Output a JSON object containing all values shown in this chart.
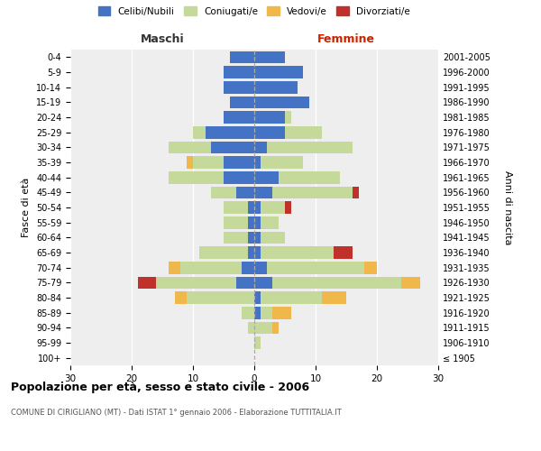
{
  "age_groups": [
    "100+",
    "95-99",
    "90-94",
    "85-89",
    "80-84",
    "75-79",
    "70-74",
    "65-69",
    "60-64",
    "55-59",
    "50-54",
    "45-49",
    "40-44",
    "35-39",
    "30-34",
    "25-29",
    "20-24",
    "15-19",
    "10-14",
    "5-9",
    "0-4"
  ],
  "birth_years": [
    "≤ 1905",
    "1906-1910",
    "1911-1915",
    "1916-1920",
    "1921-1925",
    "1926-1930",
    "1931-1935",
    "1936-1940",
    "1941-1945",
    "1946-1950",
    "1951-1955",
    "1956-1960",
    "1961-1965",
    "1966-1970",
    "1971-1975",
    "1976-1980",
    "1981-1985",
    "1986-1990",
    "1991-1995",
    "1996-2000",
    "2001-2005"
  ],
  "males": {
    "celibi": [
      0,
      0,
      0,
      0,
      0,
      3,
      2,
      1,
      1,
      1,
      1,
      3,
      5,
      5,
      7,
      8,
      5,
      4,
      5,
      5,
      4
    ],
    "coniugati": [
      0,
      0,
      1,
      2,
      11,
      13,
      10,
      8,
      4,
      4,
      4,
      4,
      9,
      5,
      7,
      2,
      0,
      0,
      0,
      0,
      0
    ],
    "vedovi": [
      0,
      0,
      0,
      0,
      2,
      0,
      2,
      0,
      0,
      0,
      0,
      0,
      0,
      1,
      0,
      0,
      0,
      0,
      0,
      0,
      0
    ],
    "divorziati": [
      0,
      0,
      0,
      0,
      0,
      3,
      0,
      0,
      0,
      0,
      0,
      0,
      0,
      0,
      0,
      0,
      0,
      0,
      0,
      0,
      0
    ]
  },
  "females": {
    "nubili": [
      0,
      0,
      0,
      1,
      1,
      3,
      2,
      1,
      1,
      1,
      1,
      3,
      4,
      1,
      2,
      5,
      5,
      9,
      7,
      8,
      5
    ],
    "coniugate": [
      0,
      1,
      3,
      2,
      10,
      21,
      16,
      12,
      4,
      3,
      4,
      13,
      10,
      7,
      14,
      6,
      1,
      0,
      0,
      0,
      0
    ],
    "vedove": [
      0,
      0,
      1,
      3,
      4,
      3,
      2,
      0,
      0,
      0,
      0,
      0,
      0,
      0,
      0,
      0,
      0,
      0,
      0,
      0,
      0
    ],
    "divorziate": [
      0,
      0,
      0,
      0,
      0,
      0,
      0,
      3,
      0,
      0,
      1,
      1,
      0,
      0,
      0,
      0,
      0,
      0,
      0,
      0,
      0
    ]
  },
  "colors": {
    "celibi_nubili": "#4472c4",
    "coniugati": "#c5d99b",
    "vedovi": "#f0b84b",
    "divorziati": "#c0312b"
  },
  "xlim": 30,
  "title": "Popolazione per età, sesso e stato civile - 2006",
  "subtitle": "COMUNE DI CIRIGLIANO (MT) - Dati ISTAT 1° gennaio 2006 - Elaborazione TUTTITALIA.IT",
  "ylabel_left": "Fasce di età",
  "ylabel_right": "Anni di nascita",
  "xlabel_left": "Maschi",
  "xlabel_right": "Femmine",
  "background_color": "#ffffff",
  "plot_bg_color": "#eeeeee"
}
